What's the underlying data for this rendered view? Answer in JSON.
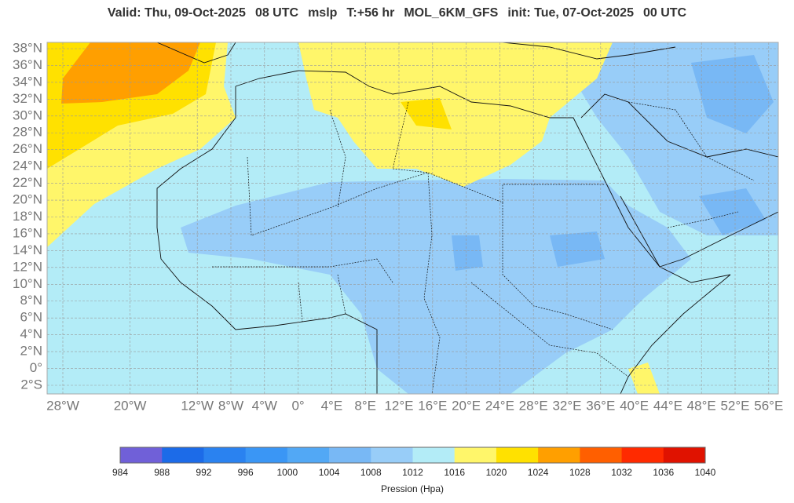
{
  "header": {
    "title_parts": [
      "Valid: Thu, 09-Oct-2025",
      "08 UTC",
      "mslp",
      "T:+56 hr",
      "MOL_6KM_GFS",
      "init: Tue, 07-Oct-2025",
      "00 UTC"
    ]
  },
  "map": {
    "lat_ticks": [
      {
        "value": 38,
        "label": "38°N"
      },
      {
        "value": 36,
        "label": "36°N"
      },
      {
        "value": 34,
        "label": "34°N"
      },
      {
        "value": 32,
        "label": "32°N"
      },
      {
        "value": 30,
        "label": "30°N"
      },
      {
        "value": 28,
        "label": "28°N"
      },
      {
        "value": 26,
        "label": "26°N"
      },
      {
        "value": 24,
        "label": "24°N"
      },
      {
        "value": 22,
        "label": "22°N"
      },
      {
        "value": 20,
        "label": "20°N"
      },
      {
        "value": 18,
        "label": "18°N"
      },
      {
        "value": 16,
        "label": "16°N"
      },
      {
        "value": 14,
        "label": "14°N"
      },
      {
        "value": 12,
        "label": "12°N"
      },
      {
        "value": 10,
        "label": "10°N"
      },
      {
        "value": 8,
        "label": "8°N"
      },
      {
        "value": 6,
        "label": "6°N"
      },
      {
        "value": 4,
        "label": "4°N"
      },
      {
        "value": 2,
        "label": "2°N"
      },
      {
        "value": 0,
        "label": "0°"
      },
      {
        "value": -2,
        "label": "2°S"
      }
    ],
    "lon_ticks": [
      {
        "value": -28,
        "label": "28°W"
      },
      {
        "value": -20,
        "label": "20°W"
      },
      {
        "value": -12,
        "label": "12°W"
      },
      {
        "value": -8,
        "label": "8°W"
      },
      {
        "value": -4,
        "label": "4°W"
      },
      {
        "value": 0,
        "label": "0°"
      },
      {
        "value": 4,
        "label": "4°E"
      },
      {
        "value": 8,
        "label": "8°E"
      },
      {
        "value": 12,
        "label": "12°E"
      },
      {
        "value": 16,
        "label": "16°E"
      },
      {
        "value": 20,
        "label": "20°E"
      },
      {
        "value": 24,
        "label": "24°E"
      },
      {
        "value": 28,
        "label": "28°E"
      },
      {
        "value": 32,
        "label": "32°E"
      },
      {
        "value": 36,
        "label": "36°E"
      },
      {
        "value": 40,
        "label": "40°E"
      },
      {
        "value": 44,
        "label": "44°E"
      },
      {
        "value": 48,
        "label": "48°E"
      },
      {
        "value": 52,
        "label": "52°E"
      },
      {
        "value": 56,
        "label": "56°E"
      }
    ]
  },
  "colorbar": {
    "ticks": [
      984,
      988,
      992,
      996,
      1000,
      1004,
      1008,
      1012,
      1016,
      1020,
      1024,
      1028,
      1032,
      1036,
      1040
    ],
    "colors": [
      "#7060d8",
      "#1c6be8",
      "#2a82f0",
      "#3a96f5",
      "#52a8f5",
      "#78b8f5",
      "#98cdf8",
      "#b3ecf7",
      "#fff66a",
      "#ffe100",
      "#ff9f00",
      "#ff5f00",
      "#ff2a00",
      "#e01200"
    ],
    "label": "Pression (Hpa)"
  }
}
